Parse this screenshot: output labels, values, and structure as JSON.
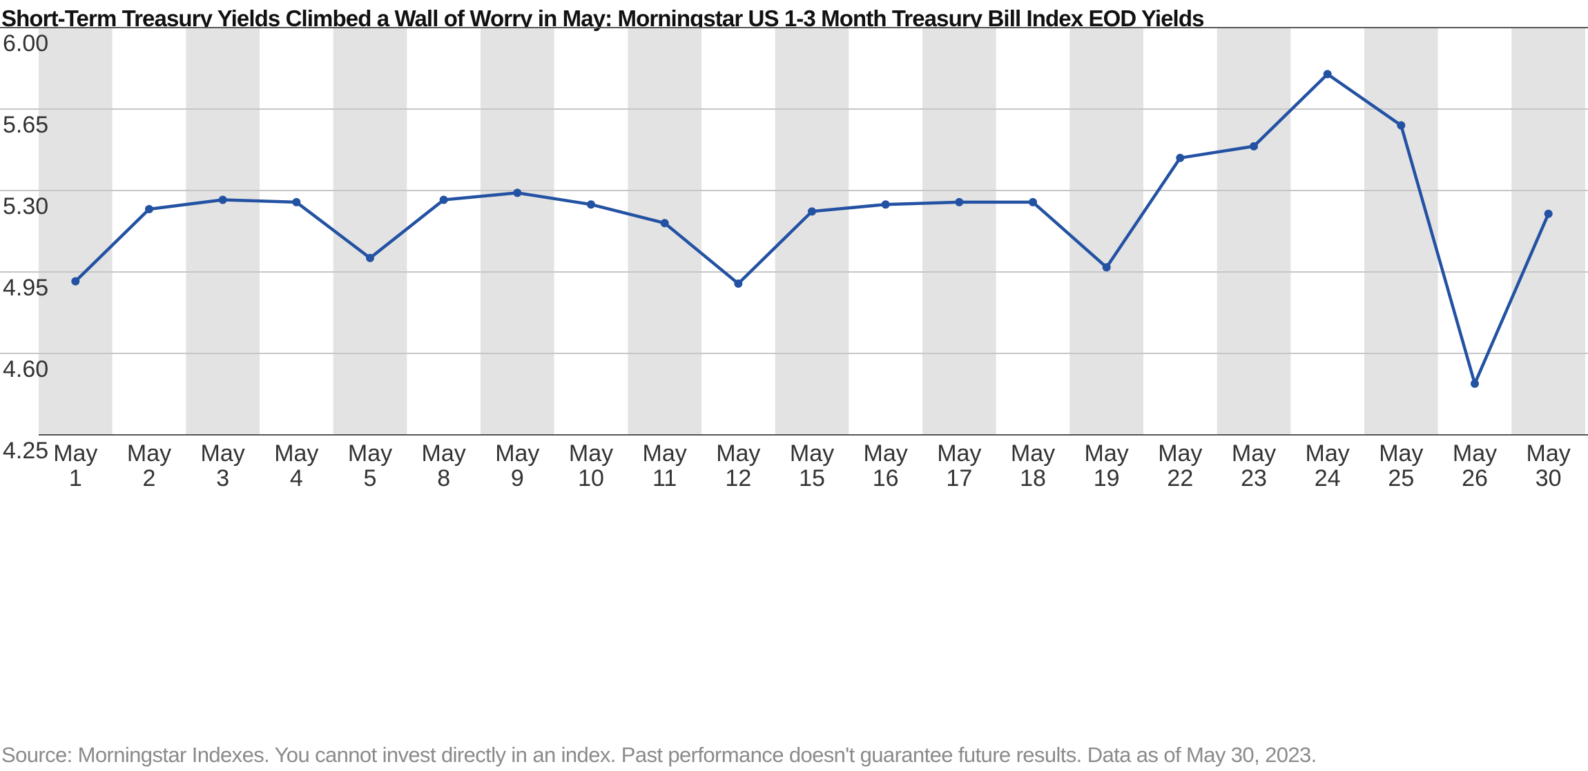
{
  "chart_data": {
    "type": "line",
    "title": "Short-Term Treasury Yields Climbed a Wall of Worry in May: Morningstar US 1-3 Month Treasury Bill Index EOD Yields",
    "xlabel": "",
    "ylabel": "",
    "categories": [
      [
        "May",
        "1"
      ],
      [
        "May",
        "2"
      ],
      [
        "May",
        "3"
      ],
      [
        "May",
        "4"
      ],
      [
        "May",
        "5"
      ],
      [
        "May",
        "8"
      ],
      [
        "May",
        "9"
      ],
      [
        "May",
        "10"
      ],
      [
        "May",
        "11"
      ],
      [
        "May",
        "12"
      ],
      [
        "May",
        "15"
      ],
      [
        "May",
        "16"
      ],
      [
        "May",
        "17"
      ],
      [
        "May",
        "18"
      ],
      [
        "May",
        "19"
      ],
      [
        "May",
        "22"
      ],
      [
        "May",
        "23"
      ],
      [
        "May",
        "24"
      ],
      [
        "May",
        "25"
      ],
      [
        "May",
        "26"
      ],
      [
        "May",
        "30"
      ]
    ],
    "series": [
      {
        "values": [
          4.91,
          5.22,
          5.26,
          5.25,
          5.01,
          5.26,
          5.29,
          5.24,
          5.16,
          4.9,
          5.21,
          5.24,
          5.25,
          5.25,
          4.97,
          5.44,
          5.49,
          5.8,
          5.58,
          4.47,
          5.2
        ],
        "color": "#2352a3"
      }
    ],
    "ylim": [
      4.25,
      6.0
    ],
    "yticks": [
      "6.00",
      "5.65",
      "5.30",
      "4.95",
      "4.60",
      "4.25"
    ],
    "grid": true,
    "legend": "none",
    "alternating_column_shading": true
  },
  "source_note": "Source: Morningstar Indexes. You cannot invest directly in an index. Past performance doesn't guarantee future results. Data as of May 30, 2023.",
  "colors": {
    "line": "#2352a3",
    "band": "#e3e3e3",
    "gridline": "#c6c6c6",
    "axis": "#555555"
  }
}
